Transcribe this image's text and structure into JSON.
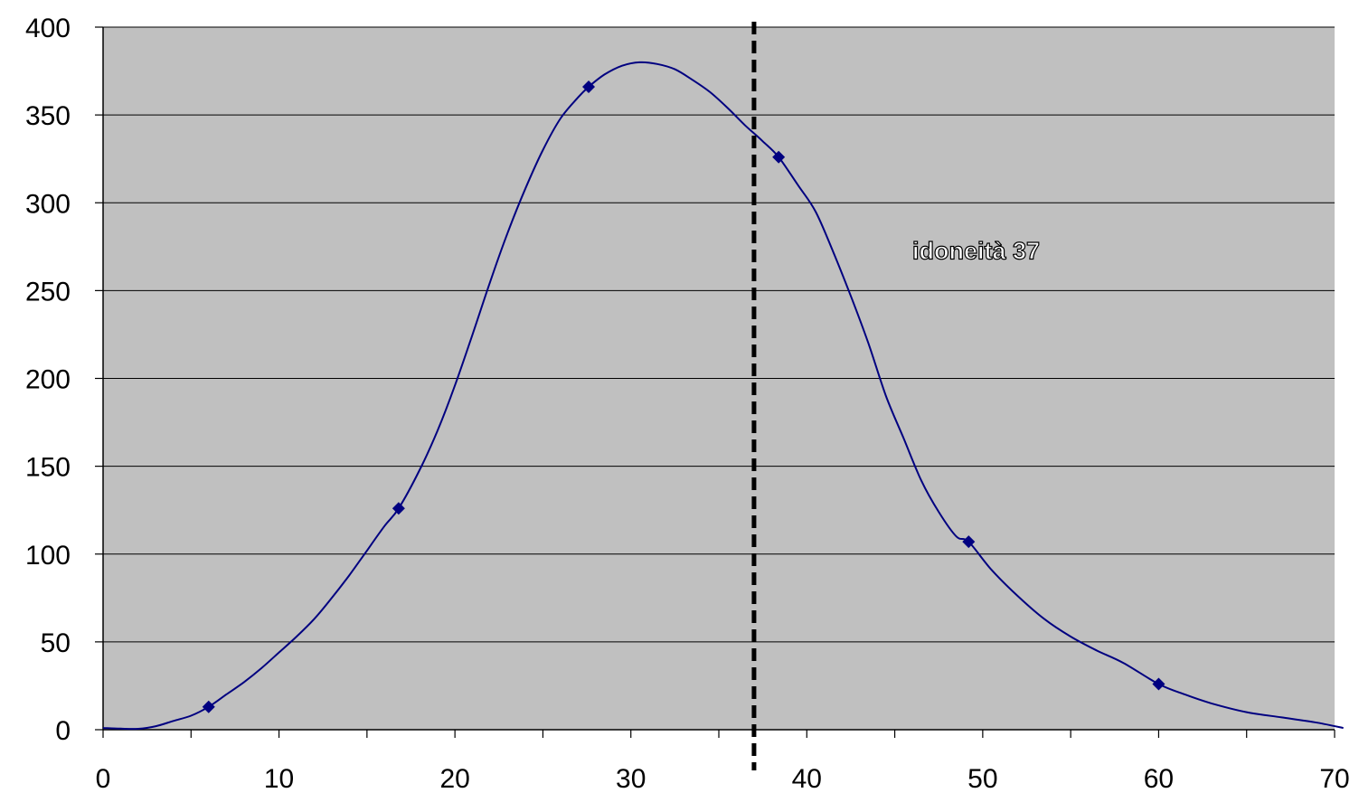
{
  "chart_data": {
    "type": "line",
    "title": "",
    "xlabel": "",
    "ylabel": "",
    "xlim": [
      0,
      70
    ],
    "ylim": [
      0,
      400
    ],
    "x_ticks": [
      "0",
      "10",
      "20",
      "30",
      "40",
      "50",
      "60",
      "70"
    ],
    "y_ticks": [
      "0",
      "50",
      "100",
      "150",
      "200",
      "250",
      "300",
      "350",
      "400"
    ],
    "grid": true,
    "legend": "none",
    "colors": {
      "plot_background": "#c0c0c0",
      "series": "#000080",
      "threshold": "#000000",
      "gridline": "#000000"
    },
    "series": [
      {
        "markers": [
          {
            "x": 6,
            "y": 13
          },
          {
            "x": 16.8,
            "y": 126
          },
          {
            "x": 27.6,
            "y": 366
          },
          {
            "x": 38.4,
            "y": 326
          },
          {
            "x": 49.2,
            "y": 107
          },
          {
            "x": 60,
            "y": 26
          }
        ],
        "curve": [
          {
            "x": 0,
            "y": 1
          },
          {
            "x": 1,
            "y": 0.6
          },
          {
            "x": 2,
            "y": 0.5
          },
          {
            "x": 3,
            "y": 2
          },
          {
            "x": 4,
            "y": 5
          },
          {
            "x": 5,
            "y": 8
          },
          {
            "x": 6,
            "y": 13
          },
          {
            "x": 7,
            "y": 20
          },
          {
            "x": 8,
            "y": 27
          },
          {
            "x": 9,
            "y": 35
          },
          {
            "x": 10,
            "y": 44
          },
          {
            "x": 11,
            "y": 53
          },
          {
            "x": 12,
            "y": 63
          },
          {
            "x": 13,
            "y": 75
          },
          {
            "x": 14,
            "y": 88
          },
          {
            "x": 15,
            "y": 102
          },
          {
            "x": 16,
            "y": 116
          },
          {
            "x": 16.8,
            "y": 126
          },
          {
            "x": 18,
            "y": 148
          },
          {
            "x": 19,
            "y": 170
          },
          {
            "x": 20,
            "y": 196
          },
          {
            "x": 21,
            "y": 225
          },
          {
            "x": 22,
            "y": 255
          },
          {
            "x": 23,
            "y": 283
          },
          {
            "x": 24,
            "y": 308
          },
          {
            "x": 25,
            "y": 330
          },
          {
            "x": 26,
            "y": 348
          },
          {
            "x": 27,
            "y": 360
          },
          {
            "x": 27.6,
            "y": 366
          },
          {
            "x": 28.5,
            "y": 373
          },
          {
            "x": 29.5,
            "y": 378
          },
          {
            "x": 30.5,
            "y": 380
          },
          {
            "x": 31.5,
            "y": 379
          },
          {
            "x": 32.5,
            "y": 376
          },
          {
            "x": 33.5,
            "y": 370
          },
          {
            "x": 34.5,
            "y": 363
          },
          {
            "x": 35.5,
            "y": 354
          },
          {
            "x": 36.5,
            "y": 344
          },
          {
            "x": 37.5,
            "y": 335
          },
          {
            "x": 38.4,
            "y": 326
          },
          {
            "x": 39.5,
            "y": 310
          },
          {
            "x": 40.5,
            "y": 295
          },
          {
            "x": 41.5,
            "y": 272
          },
          {
            "x": 42.5,
            "y": 247
          },
          {
            "x": 43.5,
            "y": 220
          },
          {
            "x": 44.5,
            "y": 190
          },
          {
            "x": 45.5,
            "y": 166
          },
          {
            "x": 46.5,
            "y": 142
          },
          {
            "x": 47.5,
            "y": 124
          },
          {
            "x": 48.5,
            "y": 110
          },
          {
            "x": 49.2,
            "y": 107
          },
          {
            "x": 50.5,
            "y": 91
          },
          {
            "x": 52,
            "y": 76
          },
          {
            "x": 53.5,
            "y": 63
          },
          {
            "x": 55,
            "y": 53
          },
          {
            "x": 56.5,
            "y": 45
          },
          {
            "x": 58,
            "y": 38
          },
          {
            "x": 60,
            "y": 26
          },
          {
            "x": 61.5,
            "y": 20
          },
          {
            "x": 63,
            "y": 15
          },
          {
            "x": 65,
            "y": 10
          },
          {
            "x": 67,
            "y": 7
          },
          {
            "x": 69,
            "y": 4
          },
          {
            "x": 70.5,
            "y": 1
          }
        ]
      }
    ],
    "threshold": {
      "x": 37
    },
    "annotations": [
      {
        "text": "idoneità 37",
        "x": 46,
        "y": 268
      }
    ]
  }
}
